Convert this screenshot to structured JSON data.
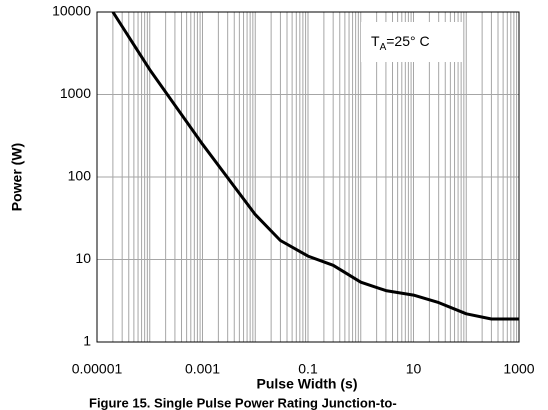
{
  "chart_data": {
    "type": "line",
    "title": "Figure 15. Single Pulse Power Rating Junction-to-",
    "x_label": "Pulse Width (s)",
    "y_label": "Power (W)",
    "annotation": {
      "main": "T",
      "sub": "A",
      "rest": "=25° C"
    },
    "x": [
      2e-05,
      0.0001,
      0.001,
      0.01,
      0.03,
      0.1,
      0.3,
      1,
      3,
      10,
      30,
      100,
      300,
      1000
    ],
    "values": [
      10000,
      2000,
      250,
      35,
      17,
      11,
      8.5,
      5.3,
      4.2,
      3.7,
      3.0,
      2.2,
      1.9,
      1.9
    ],
    "color": "#000000",
    "xlog": true,
    "ylog": true,
    "xlim": [
      1e-05,
      1000
    ],
    "ylim": [
      1,
      10000
    ],
    "xticks": [
      1e-05,
      0.001,
      0.1,
      10,
      1000
    ],
    "yticks": [
      1,
      10,
      100,
      1000,
      10000
    ],
    "grid": true,
    "x_minor_grid": true
  }
}
